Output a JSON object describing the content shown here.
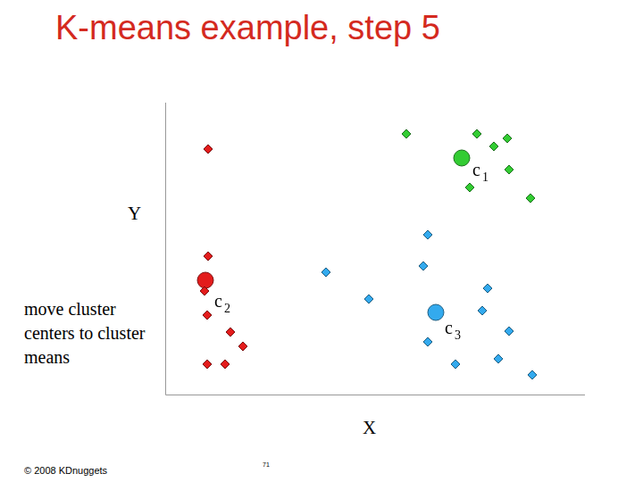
{
  "chart_data": {
    "type": "scatter",
    "title": "K-means example, step 5",
    "x_label": "X",
    "y_label": "Y",
    "xlim": [
      0,
      470
    ],
    "ylim": [
      0,
      327
    ],
    "tick_labels": false,
    "grid": false,
    "series": [
      {
        "color": "#e31c1c",
        "marker": "diamond",
        "x": [
          48,
          48,
          44,
          47,
          73,
          87,
          47,
          67
        ],
        "values": [
          275,
          155,
          116,
          89,
          70,
          54,
          34,
          34
        ]
      },
      {
        "color": "#e31c1c",
        "marker": "circle",
        "x": [
          45
        ],
        "values": [
          128
        ]
      },
      {
        "color": "#33cc33",
        "marker": "diamond",
        "x": [
          270,
          349,
          383,
          368,
          385,
          341,
          409
        ],
        "values": [
          292,
          292,
          287,
          278,
          252,
          232,
          220
        ]
      },
      {
        "color": "#33cc33",
        "marker": "circle",
        "x": [
          332
        ],
        "values": [
          265
        ]
      },
      {
        "color": "#33aaee",
        "marker": "diamond",
        "x": [
          294,
          180,
          289,
          228,
          361,
          355,
          294,
          385,
          325,
          373,
          411
        ],
        "values": [
          179,
          137,
          144,
          107,
          119,
          94,
          59,
          71,
          34,
          40,
          22
        ]
      },
      {
        "color": "#33aaee",
        "marker": "circle",
        "x": [
          303
        ],
        "values": [
          92
        ]
      }
    ],
    "annotations": [
      {
        "text": "c",
        "subscript": "1",
        "x": 344,
        "y": 250
      },
      {
        "text": "c",
        "subscript": "2",
        "x": 55,
        "y": 103
      },
      {
        "text": "c",
        "subscript": "3",
        "x": 313,
        "y": 73
      }
    ]
  },
  "side_text": "move cluster centers to cluster means",
  "footer": {
    "copyright": "© 2008 KDnuggets",
    "page": 71
  }
}
